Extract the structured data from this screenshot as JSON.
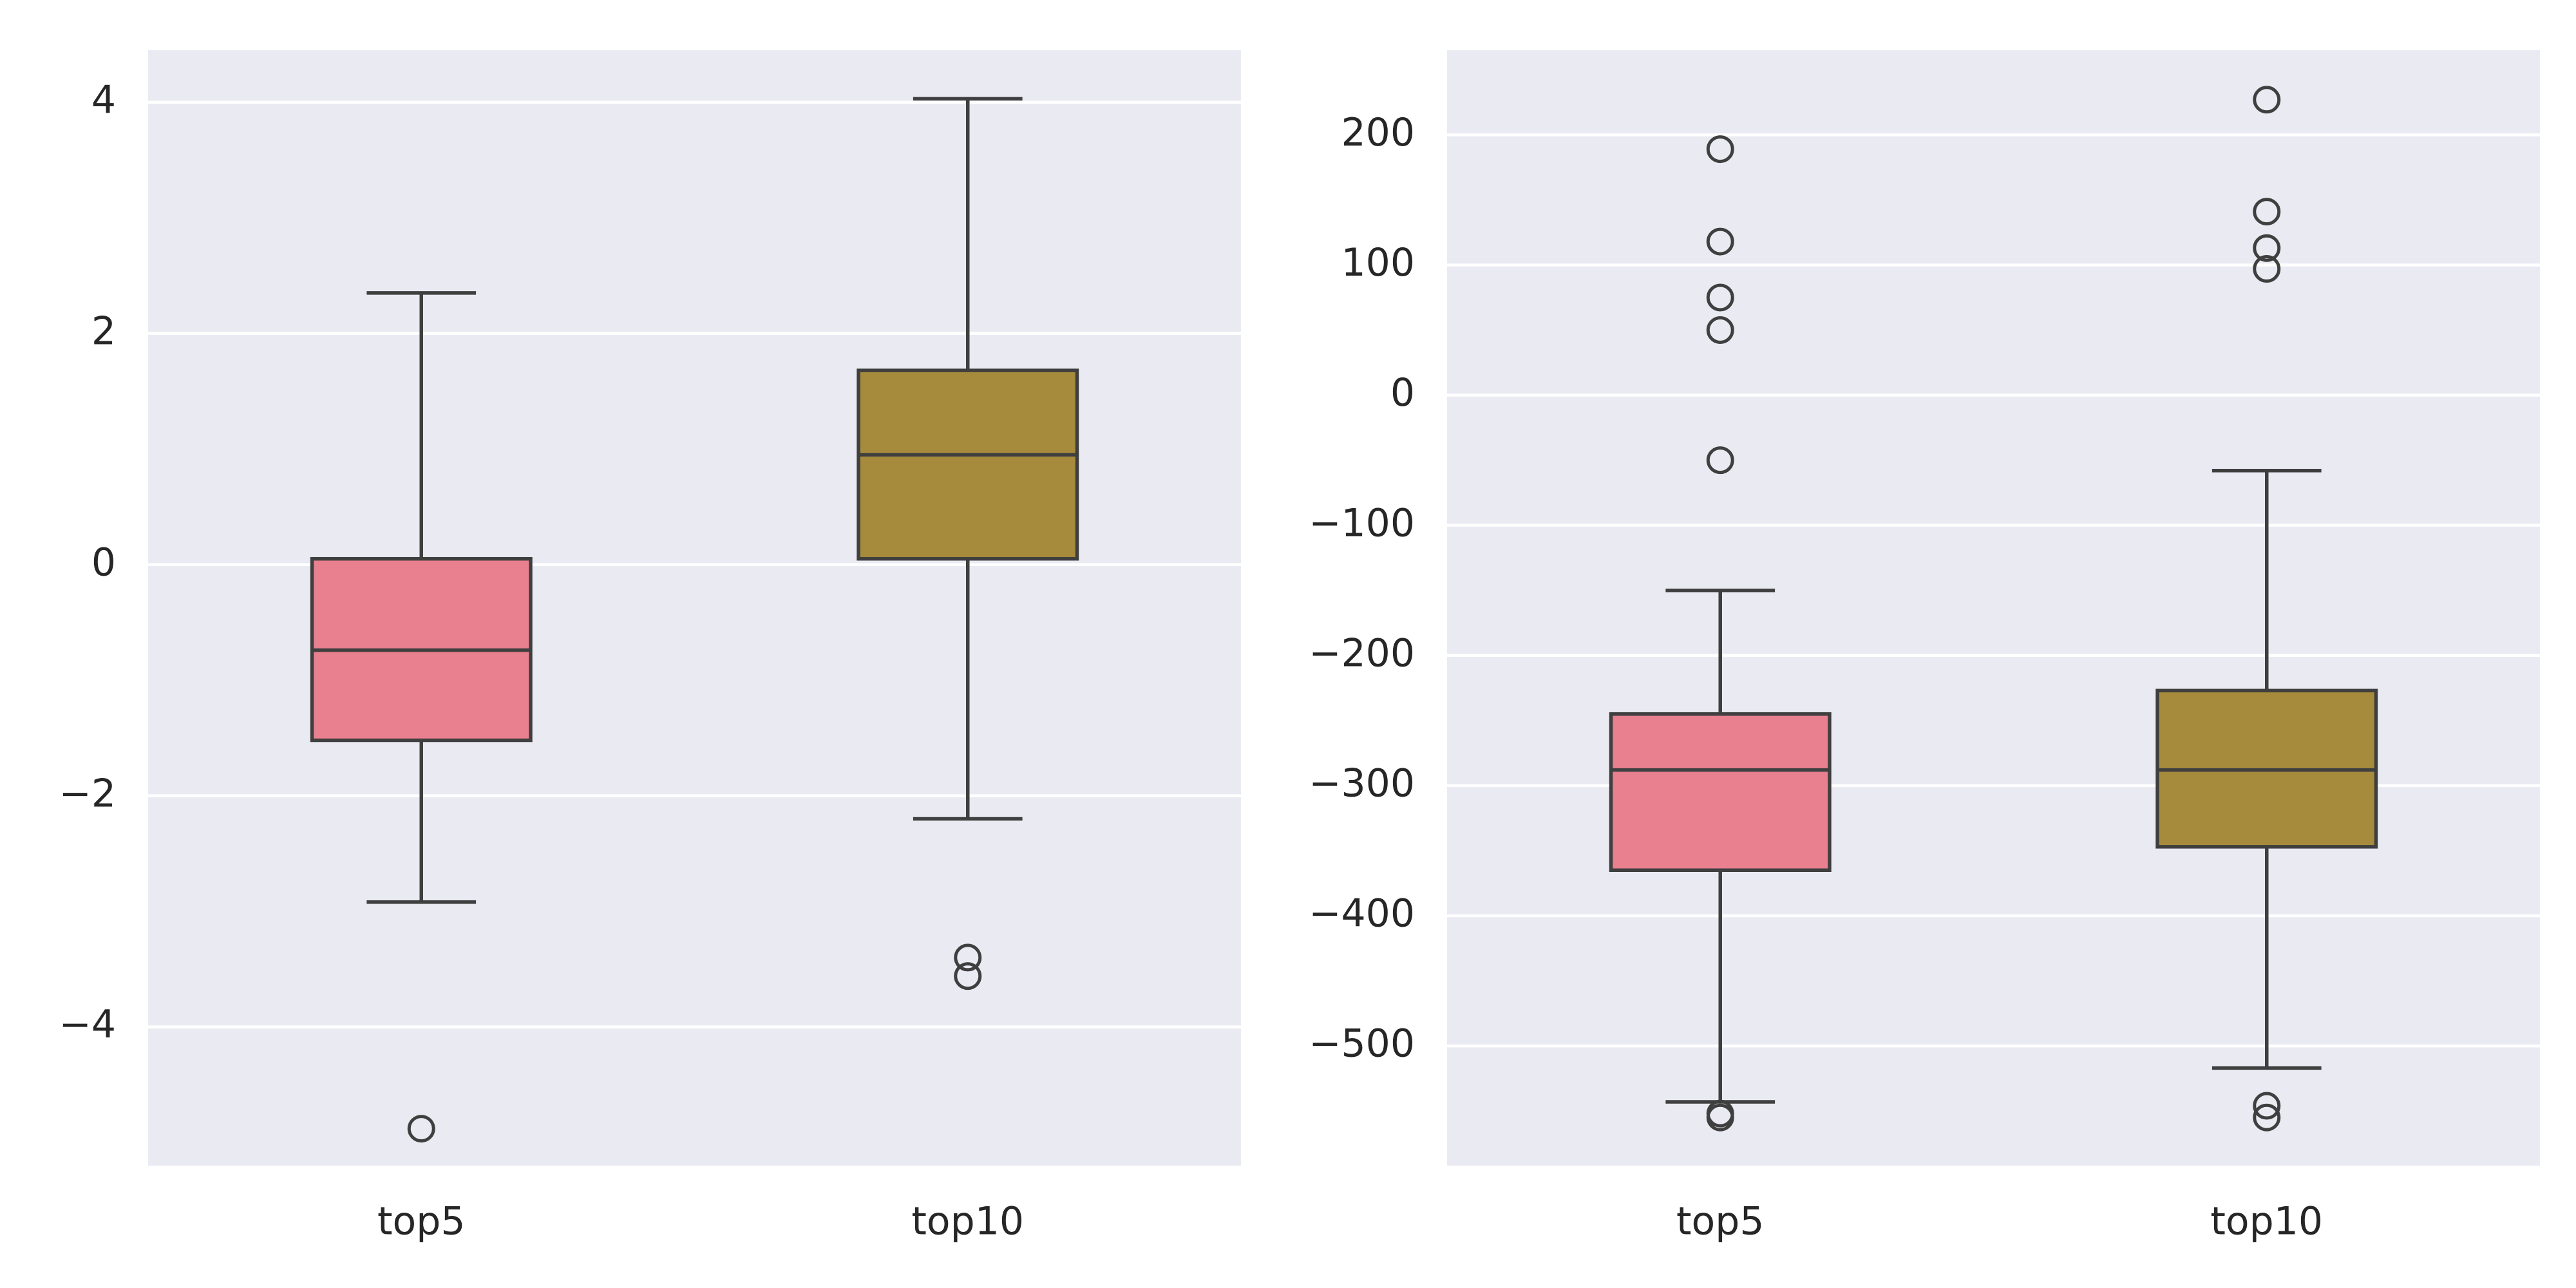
{
  "chart_data": [
    {
      "type": "box",
      "categories": [
        "top5",
        "top10"
      ],
      "ylim": [
        -5.2,
        4.45
      ],
      "yticks": [
        -4,
        -2,
        0,
        2,
        4
      ],
      "ytick_labels": [
        "−4",
        "−2",
        "0",
        "2",
        "4"
      ],
      "grid": true,
      "colors": [
        "#e8808f",
        "#a68b3c"
      ],
      "boxes": [
        {
          "whisker_low": -2.92,
          "q1": -1.52,
          "median": -0.74,
          "q3": 0.05,
          "whisker_high": 2.35,
          "fliers": [
            -4.88
          ]
        },
        {
          "whisker_low": -2.2,
          "q1": 0.05,
          "median": 0.95,
          "q3": 1.68,
          "whisker_high": 4.03,
          "fliers": [
            -3.4,
            -3.56
          ]
        }
      ]
    },
    {
      "type": "box",
      "categories": [
        "top5",
        "top10"
      ],
      "ylim": [
        -592,
        265
      ],
      "yticks": [
        -500,
        -400,
        -300,
        -200,
        -100,
        0,
        100,
        200
      ],
      "ytick_labels": [
        "−500",
        "−400",
        "−300",
        "−200",
        "−100",
        "0",
        "100",
        "200"
      ],
      "grid": true,
      "colors": [
        "#e8808f",
        "#a68b3c"
      ],
      "boxes": [
        {
          "whisker_low": -543,
          "q1": -365,
          "median": -288,
          "q3": -245,
          "whisker_high": -150,
          "fliers": [
            -552,
            -555,
            -50,
            50,
            75,
            118,
            189
          ]
        },
        {
          "whisker_low": -517,
          "q1": -347,
          "median": -288,
          "q3": -227,
          "whisker_high": -58,
          "fliers": [
            -546,
            -555,
            97,
            113,
            141,
            227
          ]
        }
      ]
    }
  ]
}
